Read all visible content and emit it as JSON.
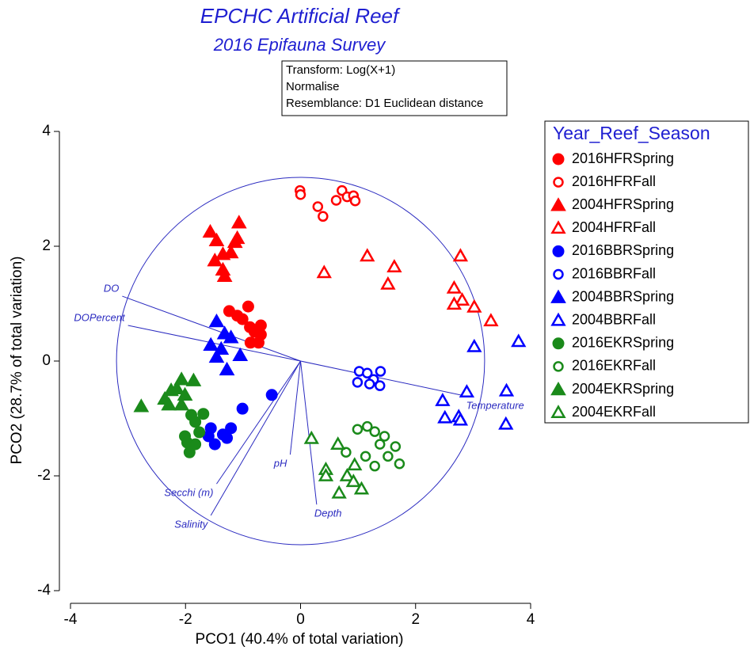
{
  "chart_data": {
    "type": "scatter",
    "title": "EPCHC Artificial Reef",
    "subtitle": "2016 Epifauna Survey",
    "annotations": [
      "Transform: Log(X+1)",
      "Normalise",
      "Resemblance: D1 Euclidean distance"
    ],
    "x_label": "PCO1 (40.4% of total variation)",
    "y_label": "PCO2 (28.7% of total variation)",
    "xlim": [
      -4,
      4
    ],
    "ylim": [
      -4,
      4
    ],
    "xticks": [
      -4,
      -2,
      0,
      2,
      4
    ],
    "yticks": [
      -4,
      -2,
      0,
      2,
      4
    ],
    "legend_title": "Year_Reef_Season",
    "legend_position": "right",
    "circle_radius": 3.2,
    "vector_color": "#2b2bc0",
    "vectors": [
      {
        "label": "DO",
        "x": -3.1,
        "y": 1.13
      },
      {
        "label": "DOPercent",
        "x": -3.0,
        "y": 0.62
      },
      {
        "label": "Temperature",
        "x": 2.92,
        "y": -0.62
      },
      {
        "label": "pH",
        "x": -0.18,
        "y": -1.63
      },
      {
        "label": "Depth",
        "x": 0.28,
        "y": -2.5
      },
      {
        "label": "Secchi (m)",
        "x": -1.46,
        "y": -2.14
      },
      {
        "label": "Salinity",
        "x": -1.56,
        "y": -2.69
      }
    ],
    "series": [
      {
        "name": "2016HFRSpring",
        "color": "#ff0000",
        "marker": "circle",
        "filled": true,
        "x": [
          -1.24,
          -1.1,
          -1.01,
          -0.91,
          -0.88,
          -0.8,
          -0.69,
          -0.69,
          -0.87,
          -0.73
        ],
        "y": [
          0.87,
          0.79,
          0.73,
          0.95,
          0.59,
          0.51,
          0.62,
          0.46,
          0.32,
          0.32
        ]
      },
      {
        "name": "2016HFRFall",
        "color": "#ff0000",
        "marker": "circle",
        "filled": false,
        "x": [
          -0.01,
          0,
          0.3,
          0.39,
          0.62,
          0.72,
          0.81,
          0.92,
          0.95
        ],
        "y": [
          2.97,
          2.9,
          2.69,
          2.52,
          2.8,
          2.97,
          2.86,
          2.88,
          2.79
        ]
      },
      {
        "name": "2004HFRSpring",
        "color": "#ff0000",
        "marker": "triangle",
        "filled": true,
        "x": [
          -1.57,
          -1.46,
          -1.49,
          -1.35,
          -1.35,
          -1.32,
          -1.21,
          -1.14,
          -1.07,
          -1.1
        ],
        "y": [
          2.25,
          2.1,
          1.75,
          1.86,
          1.59,
          1.48,
          1.89,
          2.07,
          2.41,
          2.14
        ]
      },
      {
        "name": "2004HFRFall",
        "color": "#ff0000",
        "marker": "triangle",
        "filled": false,
        "x": [
          0.41,
          1.16,
          1.63,
          1.52,
          2.78,
          2.67,
          2.81,
          2.67,
          3.02,
          3.31
        ],
        "y": [
          1.54,
          1.83,
          1.64,
          1.34,
          1.83,
          1.27,
          1.06,
          0.99,
          0.94,
          0.7
        ]
      },
      {
        "name": "2016BBRSpring",
        "color": "#0000ff",
        "marker": "circle",
        "filled": true,
        "x": [
          -0.5,
          -1.01,
          -1.21,
          -1.35,
          -1.6,
          -1.49,
          -1.28,
          -1.56
        ],
        "y": [
          -0.59,
          -0.83,
          -1.17,
          -1.28,
          -1.31,
          -1.45,
          -1.34,
          -1.17
        ]
      },
      {
        "name": "2016BBRFall",
        "color": "#0000ff",
        "marker": "circle",
        "filled": false,
        "x": [
          1.02,
          1.16,
          1.27,
          1.39,
          0.99,
          1.2,
          1.38
        ],
        "y": [
          -0.18,
          -0.21,
          -0.32,
          -0.18,
          -0.37,
          -0.4,
          -0.43
        ]
      },
      {
        "name": "2004BBRSpring",
        "color": "#0000ff",
        "marker": "triangle",
        "filled": true,
        "x": [
          -1.46,
          -1.32,
          -1.56,
          -1.38,
          -1.21,
          -1.05,
          -1.46,
          -1.28
        ],
        "y": [
          0.69,
          0.48,
          0.28,
          0.21,
          0.41,
          0.1,
          0.07,
          -0.15
        ]
      },
      {
        "name": "2004BBRFall",
        "color": "#0000ff",
        "marker": "triangle",
        "filled": false,
        "x": [
          3.79,
          3.02,
          3.58,
          2.89,
          2.47,
          2.51,
          2.75,
          2.78,
          3.57
        ],
        "y": [
          0.34,
          0.25,
          -0.52,
          -0.54,
          -0.69,
          -0.99,
          -0.97,
          -1.03,
          -1.1
        ]
      },
      {
        "name": "2016EKRSpring",
        "color": "#1a8a1a",
        "marker": "circle",
        "filled": true,
        "x": [
          -1.9,
          -1.69,
          -1.83,
          -1.76,
          -2.01,
          -1.97,
          -1.83,
          -1.93
        ],
        "y": [
          -0.94,
          -0.92,
          -1.06,
          -1.24,
          -1.31,
          -1.42,
          -1.45,
          -1.59
        ]
      },
      {
        "name": "2016EKRFall",
        "color": "#1a8a1a",
        "marker": "circle",
        "filled": false,
        "x": [
          0.99,
          1.16,
          1.29,
          1.46,
          1.65,
          1.38,
          1.13,
          1.52,
          0.79,
          1.72,
          1.29
        ],
        "y": [
          -1.19,
          -1.14,
          -1.23,
          -1.31,
          -1.49,
          -1.45,
          -1.66,
          -1.66,
          -1.59,
          -1.79,
          -1.83
        ]
      },
      {
        "name": "2004EKRSpring",
        "color": "#1a8a1a",
        "marker": "triangle",
        "filled": true,
        "x": [
          -2.77,
          -2.36,
          -2.25,
          -2.07,
          -2.15,
          -2.01,
          -1.86,
          -2.29,
          -2.07
        ],
        "y": [
          -0.79,
          -0.66,
          -0.51,
          -0.32,
          -0.48,
          -0.59,
          -0.34,
          -0.76,
          -0.76
        ]
      },
      {
        "name": "2004EKRFall",
        "color": "#1a8a1a",
        "marker": "triangle",
        "filled": false,
        "x": [
          0.19,
          0.65,
          0.94,
          0.44,
          0.44,
          0.81,
          0.92,
          0.67,
          1.06
        ],
        "y": [
          -1.35,
          -1.45,
          -1.81,
          -1.89,
          -2.0,
          -2.0,
          -2.1,
          -2.3,
          -2.23
        ]
      }
    ]
  }
}
